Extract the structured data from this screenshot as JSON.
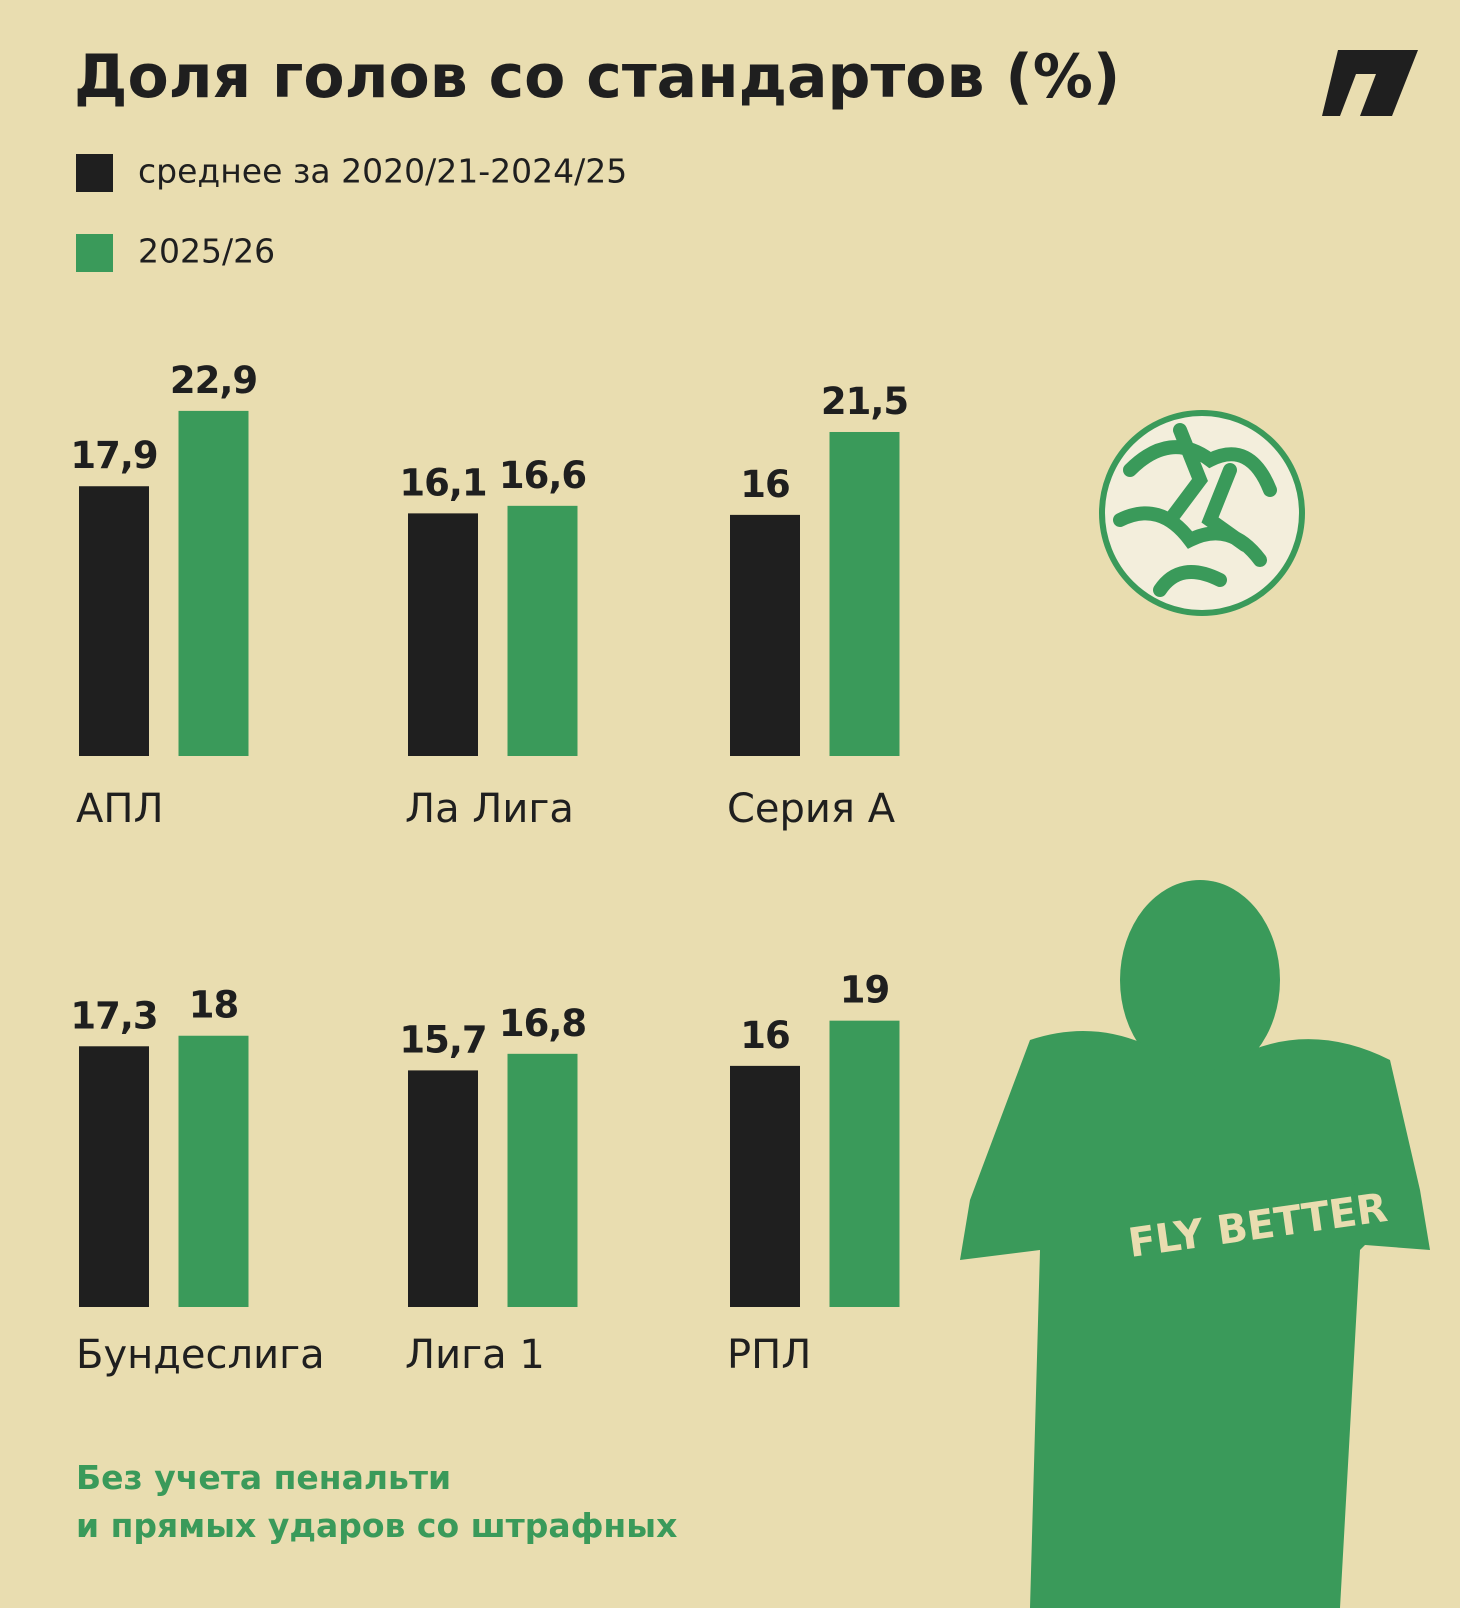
{
  "chart_data": {
    "type": "bar",
    "title": "Доля голов со стандартов (%)",
    "categories": [
      "АПЛ",
      "Ла Лига",
      "Серия А",
      "Бундеслига",
      "Лига 1",
      "РПЛ"
    ],
    "series": [
      {
        "name": "среднее за 2020/21-2024/25",
        "color": "#1f1f1f",
        "values": [
          17.9,
          16.1,
          16,
          17.3,
          15.7,
          16
        ],
        "value_labels": [
          "17,9",
          "16,1",
          "16",
          "17,3",
          "15,7",
          "16"
        ]
      },
      {
        "name": "2025/26",
        "color": "#3a9a5a",
        "values": [
          22.9,
          16.6,
          21.5,
          18,
          16.8,
          19
        ],
        "value_labels": [
          "22,9",
          "16,6",
          "21,5",
          "18",
          "16,8",
          "19"
        ]
      }
    ],
    "note": [
      "Без учета пенальти",
      "и прямых ударов со штрафных"
    ]
  }
}
